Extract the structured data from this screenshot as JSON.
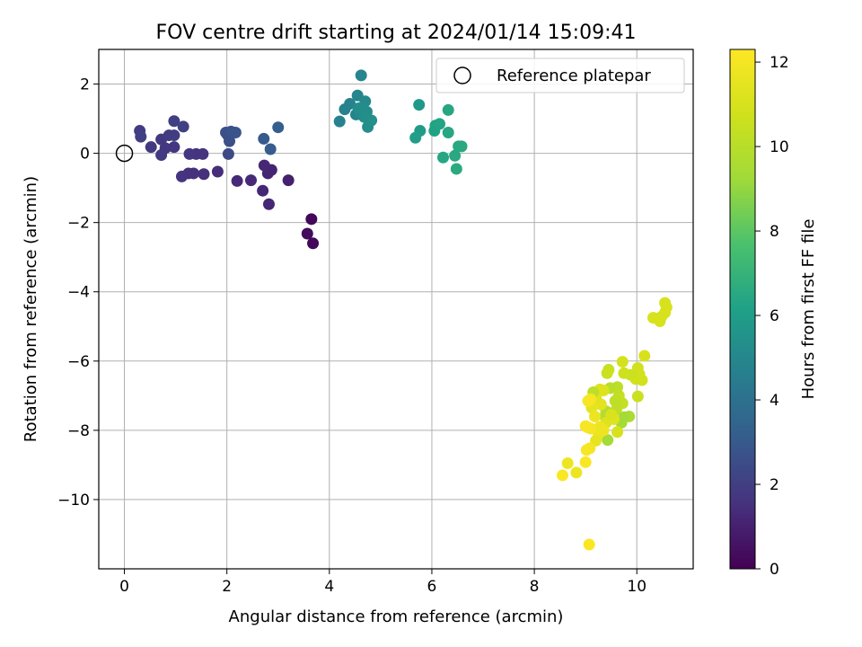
{
  "chart_data": {
    "type": "scatter",
    "title": "FOV centre drift starting at 2024/01/14 15:09:41",
    "xlabel": "Angular distance from reference (arcmin)",
    "ylabel": "Rotation from reference (arcmin)",
    "xlim": [
      -0.5,
      11.1
    ],
    "ylim": [
      -12.0,
      3.0
    ],
    "xticks": [
      0,
      2,
      4,
      6,
      8,
      10
    ],
    "yticks": [
      2,
      0,
      -2,
      -4,
      -6,
      -8,
      -10
    ],
    "grid": true,
    "legend": {
      "location": "top-right",
      "entries": [
        "Reference platepar"
      ]
    },
    "reference_point": {
      "label": "Reference platepar",
      "x": 0,
      "y": 0
    },
    "colorbar": {
      "label": "Hours from first FF file",
      "colormap": "viridis",
      "range": [
        0,
        12.3
      ],
      "ticks": [
        0,
        2,
        4,
        6,
        8,
        10,
        12
      ]
    },
    "points": [
      {
        "x": 3.65,
        "y": -1.9,
        "c": 0.2
      },
      {
        "x": 3.68,
        "y": -2.6,
        "c": 0.2
      },
      {
        "x": 3.57,
        "y": -2.32,
        "c": 0.3
      },
      {
        "x": 3.2,
        "y": -0.78,
        "c": 1.0
      },
      {
        "x": 2.87,
        "y": -0.48,
        "c": 1.1
      },
      {
        "x": 2.8,
        "y": -0.58,
        "c": 1.1
      },
      {
        "x": 2.82,
        "y": -1.47,
        "c": 1.2
      },
      {
        "x": 2.73,
        "y": -0.35,
        "c": 1.2
      },
      {
        "x": 2.7,
        "y": -1.08,
        "c": 1.2
      },
      {
        "x": 2.47,
        "y": -0.78,
        "c": 1.3
      },
      {
        "x": 2.2,
        "y": -0.8,
        "c": 1.3
      },
      {
        "x": 1.82,
        "y": -0.53,
        "c": 1.4
      },
      {
        "x": 1.55,
        "y": -0.6,
        "c": 1.5
      },
      {
        "x": 1.35,
        "y": -0.58,
        "c": 1.5
      },
      {
        "x": 1.25,
        "y": -0.58,
        "c": 1.5
      },
      {
        "x": 1.12,
        "y": -0.67,
        "c": 1.6
      },
      {
        "x": 1.53,
        "y": -0.02,
        "c": 1.6
      },
      {
        "x": 1.4,
        "y": -0.02,
        "c": 1.6
      },
      {
        "x": 1.27,
        "y": -0.02,
        "c": 1.7
      },
      {
        "x": 0.97,
        "y": 0.18,
        "c": 1.7
      },
      {
        "x": 0.8,
        "y": 0.15,
        "c": 1.7
      },
      {
        "x": 0.72,
        "y": -0.05,
        "c": 1.8
      },
      {
        "x": 0.52,
        "y": 0.18,
        "c": 1.8
      },
      {
        "x": 0.72,
        "y": 0.4,
        "c": 1.8
      },
      {
        "x": 0.87,
        "y": 0.52,
        "c": 1.9
      },
      {
        "x": 0.97,
        "y": 0.52,
        "c": 1.9
      },
      {
        "x": 0.3,
        "y": 0.65,
        "c": 1.9
      },
      {
        "x": 0.32,
        "y": 0.48,
        "c": 2.0
      },
      {
        "x": 0.97,
        "y": 0.93,
        "c": 2.0
      },
      {
        "x": 1.15,
        "y": 0.77,
        "c": 2.1
      },
      {
        "x": 2.03,
        "y": -0.02,
        "c": 2.4
      },
      {
        "x": 2.02,
        "y": 0.52,
        "c": 2.6
      },
      {
        "x": 2.05,
        "y": 0.35,
        "c": 2.6
      },
      {
        "x": 1.98,
        "y": 0.6,
        "c": 2.6
      },
      {
        "x": 2.08,
        "y": 0.63,
        "c": 2.8
      },
      {
        "x": 2.17,
        "y": 0.6,
        "c": 2.8
      },
      {
        "x": 2.72,
        "y": 0.42,
        "c": 3.0
      },
      {
        "x": 2.85,
        "y": 0.12,
        "c": 3.1
      },
      {
        "x": 3.0,
        "y": 0.75,
        "c": 3.2
      },
      {
        "x": 4.2,
        "y": 0.92,
        "c": 4.7
      },
      {
        "x": 4.3,
        "y": 1.27,
        "c": 4.8
      },
      {
        "x": 4.4,
        "y": 1.43,
        "c": 4.8
      },
      {
        "x": 4.52,
        "y": 1.12,
        "c": 4.8
      },
      {
        "x": 4.55,
        "y": 1.67,
        "c": 4.9
      },
      {
        "x": 4.62,
        "y": 2.25,
        "c": 4.9
      },
      {
        "x": 4.65,
        "y": 1.3,
        "c": 5.0
      },
      {
        "x": 4.6,
        "y": 1.13,
        "c": 5.0
      },
      {
        "x": 4.7,
        "y": 1.5,
        "c": 5.1
      },
      {
        "x": 4.73,
        "y": 1.2,
        "c": 5.2
      },
      {
        "x": 4.68,
        "y": 1.05,
        "c": 5.3
      },
      {
        "x": 4.75,
        "y": 0.76,
        "c": 5.3
      },
      {
        "x": 4.82,
        "y": 0.95,
        "c": 5.4
      },
      {
        "x": 4.57,
        "y": 1.3,
        "c": 5.2
      },
      {
        "x": 5.75,
        "y": 1.4,
        "c": 5.8
      },
      {
        "x": 5.77,
        "y": 0.65,
        "c": 5.9
      },
      {
        "x": 5.68,
        "y": 0.45,
        "c": 6.0
      },
      {
        "x": 6.05,
        "y": 0.65,
        "c": 6.2
      },
      {
        "x": 6.07,
        "y": 0.8,
        "c": 6.2
      },
      {
        "x": 6.15,
        "y": 0.85,
        "c": 6.3
      },
      {
        "x": 6.32,
        "y": 1.25,
        "c": 6.4
      },
      {
        "x": 6.32,
        "y": 0.6,
        "c": 6.4
      },
      {
        "x": 6.22,
        "y": -0.12,
        "c": 6.4
      },
      {
        "x": 6.45,
        "y": -0.07,
        "c": 6.5
      },
      {
        "x": 6.52,
        "y": 0.2,
        "c": 6.5
      },
      {
        "x": 6.58,
        "y": 0.2,
        "c": 6.5
      },
      {
        "x": 6.48,
        "y": -0.45,
        "c": 6.6
      },
      {
        "x": 10.55,
        "y": -4.32,
        "c": 11.0
      },
      {
        "x": 10.58,
        "y": -4.45,
        "c": 11.0
      },
      {
        "x": 10.55,
        "y": -4.6,
        "c": 11.0
      },
      {
        "x": 10.48,
        "y": -4.72,
        "c": 11.0
      },
      {
        "x": 10.45,
        "y": -4.85,
        "c": 11.0
      },
      {
        "x": 10.32,
        "y": -4.75,
        "c": 11.0
      },
      {
        "x": 10.15,
        "y": -5.85,
        "c": 11.0
      },
      {
        "x": 10.02,
        "y": -6.2,
        "c": 10.8
      },
      {
        "x": 10.05,
        "y": -6.38,
        "c": 10.8
      },
      {
        "x": 9.98,
        "y": -6.52,
        "c": 10.8
      },
      {
        "x": 10.1,
        "y": -6.55,
        "c": 10.8
      },
      {
        "x": 9.88,
        "y": -6.4,
        "c": 10.6
      },
      {
        "x": 9.75,
        "y": -6.35,
        "c": 10.7
      },
      {
        "x": 9.72,
        "y": -6.02,
        "c": 10.9
      },
      {
        "x": 10.02,
        "y": -7.02,
        "c": 10.6
      },
      {
        "x": 9.85,
        "y": -7.6,
        "c": 9.6
      },
      {
        "x": 9.75,
        "y": -7.62,
        "c": 9.4
      },
      {
        "x": 9.7,
        "y": -7.78,
        "c": 9.4
      },
      {
        "x": 9.65,
        "y": -7.0,
        "c": 10.4
      },
      {
        "x": 9.72,
        "y": -7.22,
        "c": 10.4
      },
      {
        "x": 9.62,
        "y": -6.75,
        "c": 10.2
      },
      {
        "x": 9.58,
        "y": -7.15,
        "c": 10.2
      },
      {
        "x": 9.6,
        "y": -7.4,
        "c": 10.2
      },
      {
        "x": 9.62,
        "y": -8.05,
        "c": 11.0
      },
      {
        "x": 9.48,
        "y": -6.78,
        "c": 10.0
      },
      {
        "x": 9.45,
        "y": -6.25,
        "c": 10.5
      },
      {
        "x": 9.42,
        "y": -6.35,
        "c": 10.6
      },
      {
        "x": 9.35,
        "y": -6.85,
        "c": 11.2
      },
      {
        "x": 9.28,
        "y": -6.82,
        "c": 11.2
      },
      {
        "x": 9.4,
        "y": -7.45,
        "c": 9.8
      },
      {
        "x": 9.38,
        "y": -7.6,
        "c": 9.8
      },
      {
        "x": 9.4,
        "y": -7.78,
        "c": 11.2
      },
      {
        "x": 9.55,
        "y": -7.68,
        "c": 11.3
      },
      {
        "x": 9.5,
        "y": -7.55,
        "c": 11.1
      },
      {
        "x": 9.43,
        "y": -8.28,
        "c": 9.4
      },
      {
        "x": 9.35,
        "y": -8.0,
        "c": 11.8
      },
      {
        "x": 9.28,
        "y": -7.9,
        "c": 11.8
      },
      {
        "x": 9.25,
        "y": -8.1,
        "c": 11.8
      },
      {
        "x": 9.2,
        "y": -8.3,
        "c": 11.5
      },
      {
        "x": 9.3,
        "y": -7.25,
        "c": 11.4
      },
      {
        "x": 9.2,
        "y": -7.05,
        "c": 11.3
      },
      {
        "x": 9.15,
        "y": -6.9,
        "c": 10.2
      },
      {
        "x": 9.12,
        "y": -7.35,
        "c": 11.5
      },
      {
        "x": 9.1,
        "y": -7.1,
        "c": 12.0
      },
      {
        "x": 9.05,
        "y": -7.15,
        "c": 12.1
      },
      {
        "x": 9.18,
        "y": -7.6,
        "c": 11.8
      },
      {
        "x": 9.1,
        "y": -7.95,
        "c": 12.0
      },
      {
        "x": 9.05,
        "y": -7.92,
        "c": 12.1
      },
      {
        "x": 9.0,
        "y": -7.88,
        "c": 12.1
      },
      {
        "x": 9.08,
        "y": -8.52,
        "c": 12.0
      },
      {
        "x": 9.02,
        "y": -8.57,
        "c": 12.1
      },
      {
        "x": 9.0,
        "y": -8.92,
        "c": 12.2
      },
      {
        "x": 8.82,
        "y": -9.22,
        "c": 11.8
      },
      {
        "x": 8.65,
        "y": -8.95,
        "c": 11.8
      },
      {
        "x": 8.55,
        "y": -9.3,
        "c": 12.2
      },
      {
        "x": 9.07,
        "y": -11.3,
        "c": 12.2
      }
    ]
  }
}
